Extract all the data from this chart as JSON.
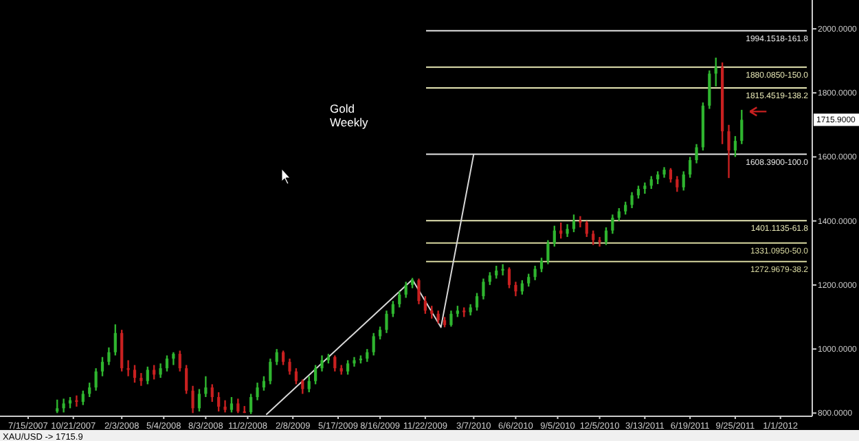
{
  "chart_data": {
    "type": "candlestick",
    "title": "Gold Weekly",
    "x": [
      "2007-09-16",
      "2007-09-30",
      "2007-10-14",
      "2007-10-28",
      "2007-11-11",
      "2007-11-25",
      "2007-12-09",
      "2007-12-23",
      "2008-01-06",
      "2008-01-20",
      "2008-02-03",
      "2008-02-17",
      "2008-03-02",
      "2008-03-16",
      "2008-03-30",
      "2008-04-13",
      "2008-04-27",
      "2008-05-11",
      "2008-05-25",
      "2008-06-08",
      "2008-06-22",
      "2008-07-06",
      "2008-07-20",
      "2008-08-03",
      "2008-08-17",
      "2008-08-31",
      "2008-09-14",
      "2008-09-28",
      "2008-10-12",
      "2008-10-26",
      "2008-11-09",
      "2008-11-23",
      "2008-12-07",
      "2008-12-21",
      "2009-01-04",
      "2009-01-18",
      "2009-02-01",
      "2009-02-15",
      "2009-03-01",
      "2009-03-15",
      "2009-03-29",
      "2009-04-12",
      "2009-04-26",
      "2009-05-10",
      "2009-05-24",
      "2009-06-07",
      "2009-06-21",
      "2009-07-05",
      "2009-07-19",
      "2009-08-02",
      "2009-08-16",
      "2009-08-30",
      "2009-09-13",
      "2009-09-27",
      "2009-10-11",
      "2009-10-25",
      "2009-11-08",
      "2009-11-22",
      "2009-12-06",
      "2009-12-20",
      "2010-01-03",
      "2010-01-17",
      "2010-01-31",
      "2010-02-14",
      "2010-02-28",
      "2010-03-14",
      "2010-03-28",
      "2010-04-11",
      "2010-04-25",
      "2010-05-09",
      "2010-05-23",
      "2010-06-06",
      "2010-06-20",
      "2010-07-04",
      "2010-07-18",
      "2010-08-01",
      "2010-08-15",
      "2010-08-29",
      "2010-09-12",
      "2010-09-26",
      "2010-10-10",
      "2010-10-24",
      "2010-11-07",
      "2010-11-21",
      "2010-12-05",
      "2010-12-19",
      "2011-01-02",
      "2011-01-16",
      "2011-01-30",
      "2011-02-13",
      "2011-02-27",
      "2011-03-13",
      "2011-03-27",
      "2011-04-10",
      "2011-04-24",
      "2011-05-08",
      "2011-05-22",
      "2011-06-05",
      "2011-06-19",
      "2011-07-03",
      "2011-07-17",
      "2011-07-31",
      "2011-08-14",
      "2011-08-28",
      "2011-09-11",
      "2011-09-25",
      "2011-10-09"
    ],
    "ohlc": [
      [
        805,
        842,
        800,
        815
      ],
      [
        815,
        845,
        802,
        830
      ],
      [
        830,
        850,
        815,
        840
      ],
      [
        840,
        855,
        820,
        835
      ],
      [
        835,
        870,
        825,
        860
      ],
      [
        860,
        895,
        850,
        880
      ],
      [
        880,
        940,
        870,
        930
      ],
      [
        930,
        975,
        915,
        960
      ],
      [
        960,
        1005,
        950,
        990
      ],
      [
        990,
        1077,
        980,
        1050
      ],
      [
        1050,
        1060,
        930,
        940
      ],
      [
        940,
        965,
        915,
        935
      ],
      [
        935,
        950,
        895,
        910
      ],
      [
        910,
        925,
        885,
        900
      ],
      [
        900,
        945,
        890,
        935
      ],
      [
        935,
        950,
        905,
        920
      ],
      [
        920,
        955,
        910,
        940
      ],
      [
        940,
        980,
        930,
        970
      ],
      [
        970,
        990,
        950,
        985
      ],
      [
        985,
        995,
        930,
        940
      ],
      [
        940,
        950,
        860,
        870
      ],
      [
        870,
        885,
        800,
        815
      ],
      [
        815,
        875,
        805,
        860
      ],
      [
        860,
        915,
        850,
        880
      ],
      [
        880,
        890,
        835,
        850
      ],
      [
        850,
        865,
        805,
        820
      ],
      [
        820,
        840,
        802,
        810
      ],
      [
        810,
        850,
        802,
        830
      ],
      [
        830,
        845,
        800,
        805
      ],
      [
        805,
        822,
        800,
        803
      ],
      [
        803,
        860,
        797,
        850
      ],
      [
        850,
        895,
        840,
        880
      ],
      [
        880,
        915,
        870,
        900
      ],
      [
        900,
        970,
        890,
        960
      ],
      [
        960,
        1000,
        950,
        990
      ],
      [
        990,
        995,
        950,
        960
      ],
      [
        960,
        970,
        920,
        930
      ],
      [
        930,
        940,
        890,
        900
      ],
      [
        900,
        905,
        860,
        875
      ],
      [
        875,
        915,
        865,
        900
      ],
      [
        900,
        950,
        890,
        940
      ],
      [
        940,
        980,
        930,
        965
      ],
      [
        965,
        985,
        955,
        975
      ],
      [
        975,
        980,
        930,
        940
      ],
      [
        940,
        950,
        920,
        930
      ],
      [
        930,
        965,
        920,
        955
      ],
      [
        955,
        975,
        945,
        965
      ],
      [
        965,
        980,
        955,
        970
      ],
      [
        970,
        1000,
        960,
        990
      ],
      [
        990,
        1050,
        980,
        1040
      ],
      [
        1040,
        1070,
        1030,
        1060
      ],
      [
        1060,
        1120,
        1050,
        1110
      ],
      [
        1110,
        1150,
        1100,
        1140
      ],
      [
        1140,
        1180,
        1130,
        1170
      ],
      [
        1170,
        1210,
        1160,
        1200
      ],
      [
        1200,
        1222,
        1190,
        1215
      ],
      [
        1215,
        1220,
        1140,
        1150
      ],
      [
        1150,
        1165,
        1110,
        1120
      ],
      [
        1120,
        1135,
        1095,
        1110
      ],
      [
        1110,
        1120,
        1080,
        1090
      ],
      [
        1090,
        1100,
        1068,
        1075
      ],
      [
        1075,
        1120,
        1070,
        1110
      ],
      [
        1110,
        1135,
        1100,
        1120
      ],
      [
        1120,
        1130,
        1100,
        1115
      ],
      [
        1115,
        1140,
        1105,
        1130
      ],
      [
        1130,
        1175,
        1120,
        1165
      ],
      [
        1165,
        1220,
        1155,
        1210
      ],
      [
        1210,
        1240,
        1200,
        1230
      ],
      [
        1230,
        1260,
        1220,
        1245
      ],
      [
        1245,
        1265,
        1230,
        1250
      ],
      [
        1250,
        1255,
        1190,
        1200
      ],
      [
        1200,
        1210,
        1165,
        1180
      ],
      [
        1180,
        1215,
        1170,
        1205
      ],
      [
        1205,
        1235,
        1195,
        1225
      ],
      [
        1225,
        1260,
        1215,
        1250
      ],
      [
        1250,
        1285,
        1240,
        1275
      ],
      [
        1275,
        1340,
        1265,
        1330
      ],
      [
        1330,
        1385,
        1320,
        1370
      ],
      [
        1370,
        1395,
        1345,
        1360
      ],
      [
        1360,
        1390,
        1350,
        1375
      ],
      [
        1375,
        1420,
        1365,
        1400
      ],
      [
        1400,
        1415,
        1380,
        1395
      ],
      [
        1395,
        1400,
        1350,
        1360
      ],
      [
        1360,
        1370,
        1325,
        1340
      ],
      [
        1340,
        1350,
        1320,
        1335
      ],
      [
        1335,
        1380,
        1325,
        1370
      ],
      [
        1370,
        1420,
        1360,
        1410
      ],
      [
        1410,
        1440,
        1400,
        1430
      ],
      [
        1430,
        1460,
        1420,
        1450
      ],
      [
        1450,
        1490,
        1440,
        1480
      ],
      [
        1480,
        1510,
        1470,
        1500
      ],
      [
        1500,
        1520,
        1485,
        1510
      ],
      [
        1510,
        1540,
        1500,
        1530
      ],
      [
        1530,
        1555,
        1515,
        1545
      ],
      [
        1545,
        1568,
        1535,
        1560
      ],
      [
        1560,
        1565,
        1520,
        1530
      ],
      [
        1530,
        1540,
        1491,
        1505
      ],
      [
        1505,
        1555,
        1495,
        1545
      ],
      [
        1545,
        1600,
        1535,
        1590
      ],
      [
        1590,
        1640,
        1580,
        1630
      ],
      [
        1630,
        1770,
        1620,
        1760
      ],
      [
        1760,
        1870,
        1750,
        1860
      ],
      [
        1860,
        1910,
        1820,
        1880
      ],
      [
        1880,
        1895,
        1640,
        1680
      ],
      [
        1680,
        1700,
        1534,
        1620
      ],
      [
        1620,
        1665,
        1600,
        1650
      ],
      [
        1650,
        1747,
        1640,
        1715.9
      ]
    ],
    "series": [
      {
        "type": "line",
        "color": "#d8d8d8",
        "x": [
          "2008-12-12",
          "2009-10-25",
          "2009-12-26",
          "2010-03-07"
        ],
        "values": [
          795,
          1217,
          1068,
          1608
        ]
      }
    ],
    "xlim": [
      "2007-05-15",
      "2012-03-10"
    ],
    "xticks": [
      {
        "value": "2007-07-15",
        "label": "7/15/2007"
      },
      {
        "value": "2007-10-21",
        "label": "10/21/2007"
      },
      {
        "value": "2008-02-03",
        "label": "2/3/2008"
      },
      {
        "value": "2008-05-04",
        "label": "5/4/2008"
      },
      {
        "value": "2008-08-03",
        "label": "8/3/2008"
      },
      {
        "value": "2008-11-02",
        "label": "11/2/2008"
      },
      {
        "value": "2009-02-08",
        "label": "2/8/2009"
      },
      {
        "value": "2009-05-17",
        "label": "5/17/2009"
      },
      {
        "value": "2009-08-16",
        "label": "8/16/2009"
      },
      {
        "value": "2009-11-22",
        "label": "11/22/2009"
      },
      {
        "value": "2010-03-07",
        "label": "3/7/2010"
      },
      {
        "value": "2010-06-06",
        "label": "6/6/2010"
      },
      {
        "value": "2010-09-05",
        "label": "9/5/2010"
      },
      {
        "value": "2010-12-05",
        "label": "12/5/2010"
      },
      {
        "value": "2011-03-13",
        "label": "3/13/2011"
      },
      {
        "value": "2011-06-19",
        "label": "6/19/2011"
      },
      {
        "value": "2011-09-25",
        "label": "9/25/2011"
      },
      {
        "value": "2012-01-01",
        "label": "1/1/2012"
      }
    ],
    "ylim": [
      790,
      2090
    ],
    "yticks": [
      {
        "value": 800,
        "label": "800.0000"
      },
      {
        "value": 1000,
        "label": "1000.0000"
      },
      {
        "value": 1200,
        "label": "1200.0000"
      },
      {
        "value": 1400,
        "label": "1400.0000"
      },
      {
        "value": 1600,
        "label": "1600.0000"
      },
      {
        "value": 1800,
        "label": "1800.0000"
      },
      {
        "value": 2000,
        "label": "2000.0000"
      }
    ],
    "ref_lines": [
      {
        "axis": "y",
        "value": 1994.1518,
        "label": "1994.1518-161.8",
        "color": "#e6e6e6"
      },
      {
        "axis": "y",
        "value": 1880.085,
        "label": "1880.0850-150.0",
        "color": "#e6e6b4"
      },
      {
        "axis": "y",
        "value": 1815.4519,
        "label": "1815.4519-138.2",
        "color": "#e6e6b4"
      },
      {
        "axis": "y",
        "value": 1608.39,
        "label": "1608.3900-100.0",
        "color": "#e6e6e6"
      },
      {
        "axis": "y",
        "value": 1401.1135,
        "label": "1401.1135-61.8",
        "color": "#e6e6b4"
      },
      {
        "axis": "y",
        "value": 1331.095,
        "label": "1331.0950-50.0",
        "color": "#d8d8a0"
      },
      {
        "axis": "y",
        "value": 1272.9679,
        "label": "1272.9679-38.2",
        "color": "#d8d8a0"
      }
    ],
    "annotations": [
      "1715.9000",
      "XAU/USD -> 1715.9"
    ],
    "grid": false
  }
}
